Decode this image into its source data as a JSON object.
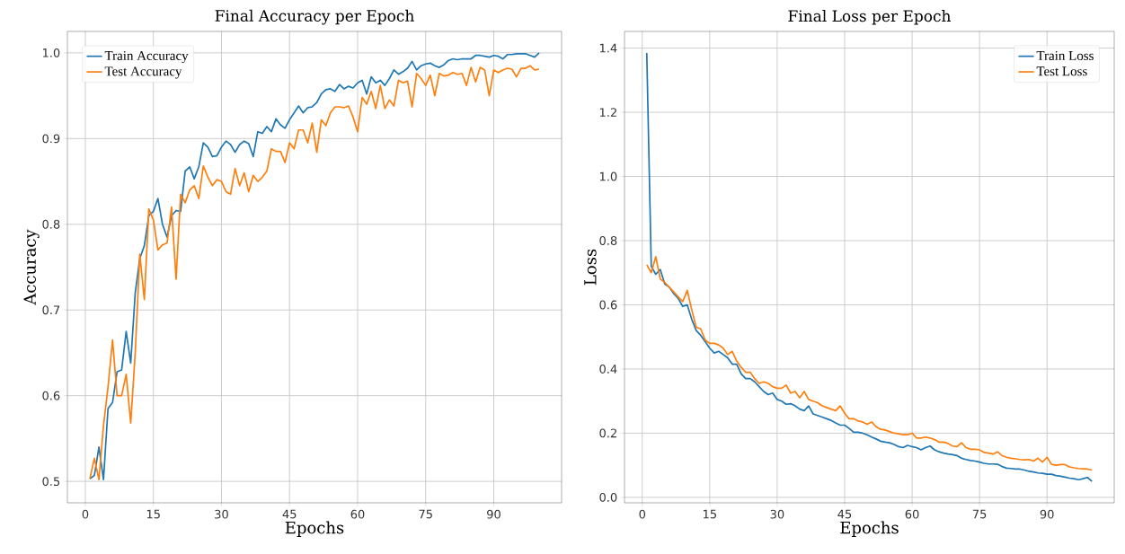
{
  "chart_data": [
    {
      "type": "line",
      "title": "Final Accuracy per Epoch",
      "xlabel": "Epochs",
      "ylabel": "Accuracy",
      "x": [
        1,
        2,
        3,
        4,
        5,
        6,
        7,
        8,
        9,
        10,
        11,
        12,
        13,
        14,
        15,
        16,
        17,
        18,
        19,
        20,
        21,
        22,
        23,
        24,
        25,
        26,
        27,
        28,
        29,
        30,
        31,
        32,
        33,
        34,
        35,
        36,
        37,
        38,
        39,
        40,
        41,
        42,
        43,
        44,
        45,
        46,
        47,
        48,
        49,
        50,
        51,
        52,
        53,
        54,
        55,
        56,
        57,
        58,
        59,
        60,
        61,
        62,
        63,
        64,
        65,
        66,
        67,
        68,
        69,
        70,
        71,
        72,
        73,
        74,
        75,
        76,
        77,
        78,
        79,
        80,
        81,
        82,
        83,
        84,
        85,
        86,
        87,
        88,
        89,
        90,
        91,
        92,
        93,
        94,
        95,
        96,
        97,
        98,
        99,
        100
      ],
      "series": [
        {
          "name": "Train Accuracy",
          "color": "#1f77b4",
          "values": [
            0.503,
            0.507,
            0.54,
            0.502,
            0.585,
            0.592,
            0.628,
            0.63,
            0.675,
            0.638,
            0.72,
            0.76,
            0.775,
            0.81,
            0.815,
            0.83,
            0.8,
            0.785,
            0.81,
            0.816,
            0.815,
            0.862,
            0.867,
            0.853,
            0.867,
            0.895,
            0.89,
            0.879,
            0.88,
            0.89,
            0.897,
            0.893,
            0.884,
            0.893,
            0.897,
            0.894,
            0.879,
            0.908,
            0.906,
            0.914,
            0.908,
            0.923,
            0.916,
            0.912,
            0.922,
            0.93,
            0.938,
            0.93,
            0.936,
            0.937,
            0.942,
            0.952,
            0.957,
            0.958,
            0.955,
            0.963,
            0.958,
            0.961,
            0.959,
            0.965,
            0.968,
            0.952,
            0.972,
            0.965,
            0.968,
            0.962,
            0.97,
            0.98,
            0.975,
            0.978,
            0.982,
            0.99,
            0.98,
            0.985,
            0.987,
            0.988,
            0.985,
            0.983,
            0.986,
            0.991,
            0.993,
            0.992,
            0.993,
            0.993,
            0.993,
            0.997,
            0.997,
            0.996,
            0.995,
            0.997,
            0.996,
            0.993,
            0.998,
            0.998,
            0.999,
            0.999,
            0.999,
            0.997,
            0.995,
            1.0
          ]
        },
        {
          "name": "Test Accuracy",
          "color": "#ff7f0e",
          "values": [
            0.503,
            0.527,
            0.502,
            0.565,
            0.61,
            0.665,
            0.6,
            0.6,
            0.625,
            0.568,
            0.65,
            0.765,
            0.712,
            0.818,
            0.805,
            0.77,
            0.776,
            0.778,
            0.82,
            0.736,
            0.835,
            0.825,
            0.84,
            0.845,
            0.83,
            0.868,
            0.855,
            0.845,
            0.852,
            0.85,
            0.838,
            0.835,
            0.865,
            0.845,
            0.86,
            0.838,
            0.857,
            0.85,
            0.855,
            0.862,
            0.888,
            0.885,
            0.885,
            0.872,
            0.895,
            0.888,
            0.91,
            0.91,
            0.895,
            0.918,
            0.884,
            0.922,
            0.915,
            0.93,
            0.937,
            0.937,
            0.936,
            0.938,
            0.925,
            0.908,
            0.948,
            0.94,
            0.955,
            0.935,
            0.962,
            0.935,
            0.945,
            0.938,
            0.968,
            0.965,
            0.967,
            0.937,
            0.976,
            0.97,
            0.962,
            0.974,
            0.95,
            0.976,
            0.973,
            0.974,
            0.977,
            0.975,
            0.976,
            0.962,
            0.983,
            0.966,
            0.983,
            0.98,
            0.95,
            0.98,
            0.977,
            0.98,
            0.982,
            0.981,
            0.972,
            0.982,
            0.982,
            0.985,
            0.98,
            0.981
          ]
        }
      ],
      "xlim": [
        -3.95,
        104.95
      ],
      "ylim": [
        0.475,
        1.025
      ],
      "xticks": [
        0,
        15,
        30,
        45,
        60,
        75,
        90
      ],
      "yticks": [
        {
          "value": 0.5,
          "label": "0.5"
        },
        {
          "value": 0.6,
          "label": "0.6"
        },
        {
          "value": 0.7,
          "label": "0.7"
        },
        {
          "value": 0.8,
          "label": "0.8"
        },
        {
          "value": 0.9,
          "label": "0.9"
        },
        {
          "value": 1.0,
          "label": "1.0"
        }
      ],
      "grid": true,
      "legend": "top left"
    },
    {
      "type": "line",
      "title": "Final Loss per Epoch",
      "xlabel": "Epochs",
      "ylabel": "Loss",
      "x": [
        1,
        2,
        3,
        4,
        5,
        6,
        7,
        8,
        9,
        10,
        11,
        12,
        13,
        14,
        15,
        16,
        17,
        18,
        19,
        20,
        21,
        22,
        23,
        24,
        25,
        26,
        27,
        28,
        29,
        30,
        31,
        32,
        33,
        34,
        35,
        36,
        37,
        38,
        39,
        40,
        41,
        42,
        43,
        44,
        45,
        46,
        47,
        48,
        49,
        50,
        51,
        52,
        53,
        54,
        55,
        56,
        57,
        58,
        59,
        60,
        61,
        62,
        63,
        64,
        65,
        66,
        67,
        68,
        69,
        70,
        71,
        72,
        73,
        74,
        75,
        76,
        77,
        78,
        79,
        80,
        81,
        82,
        83,
        84,
        85,
        86,
        87,
        88,
        89,
        90,
        91,
        92,
        93,
        94,
        95,
        96,
        97,
        98,
        99,
        100
      ],
      "series": [
        {
          "name": "Train Loss",
          "color": "#1f77b4",
          "values": [
            1.385,
            0.72,
            0.695,
            0.71,
            0.665,
            0.655,
            0.635,
            0.62,
            0.595,
            0.6,
            0.555,
            0.52,
            0.505,
            0.485,
            0.465,
            0.45,
            0.455,
            0.445,
            0.435,
            0.415,
            0.415,
            0.385,
            0.37,
            0.37,
            0.36,
            0.345,
            0.33,
            0.32,
            0.325,
            0.305,
            0.3,
            0.29,
            0.292,
            0.285,
            0.275,
            0.27,
            0.285,
            0.26,
            0.255,
            0.25,
            0.245,
            0.24,
            0.232,
            0.225,
            0.225,
            0.215,
            0.203,
            0.203,
            0.2,
            0.195,
            0.188,
            0.182,
            0.175,
            0.172,
            0.17,
            0.165,
            0.158,
            0.155,
            0.162,
            0.158,
            0.155,
            0.148,
            0.155,
            0.16,
            0.148,
            0.142,
            0.138,
            0.135,
            0.133,
            0.13,
            0.122,
            0.118,
            0.115,
            0.113,
            0.11,
            0.106,
            0.104,
            0.104,
            0.103,
            0.096,
            0.091,
            0.09,
            0.088,
            0.088,
            0.085,
            0.081,
            0.079,
            0.076,
            0.075,
            0.072,
            0.072,
            0.068,
            0.066,
            0.063,
            0.06,
            0.058,
            0.055,
            0.058,
            0.062,
            0.05
          ]
        },
        {
          "name": "Test Loss",
          "color": "#ff7f0e",
          "values": [
            0.725,
            0.7,
            0.75,
            0.68,
            0.67,
            0.655,
            0.64,
            0.625,
            0.61,
            0.645,
            0.585,
            0.53,
            0.525,
            0.49,
            0.48,
            0.48,
            0.475,
            0.465,
            0.445,
            0.455,
            0.425,
            0.405,
            0.39,
            0.39,
            0.37,
            0.355,
            0.36,
            0.355,
            0.345,
            0.34,
            0.34,
            0.35,
            0.325,
            0.33,
            0.31,
            0.33,
            0.305,
            0.3,
            0.295,
            0.285,
            0.28,
            0.275,
            0.27,
            0.285,
            0.262,
            0.245,
            0.245,
            0.238,
            0.235,
            0.228,
            0.235,
            0.22,
            0.212,
            0.21,
            0.205,
            0.2,
            0.198,
            0.195,
            0.195,
            0.2,
            0.185,
            0.185,
            0.188,
            0.185,
            0.18,
            0.172,
            0.172,
            0.168,
            0.16,
            0.158,
            0.17,
            0.155,
            0.15,
            0.15,
            0.148,
            0.14,
            0.138,
            0.135,
            0.142,
            0.13,
            0.125,
            0.122,
            0.12,
            0.118,
            0.117,
            0.118,
            0.113,
            0.122,
            0.11,
            0.125,
            0.103,
            0.1,
            0.102,
            0.102,
            0.095,
            0.092,
            0.09,
            0.089,
            0.088,
            0.085
          ]
        }
      ],
      "xlim": [
        -3.95,
        104.95
      ],
      "ylim": [
        -0.017,
        1.452
      ],
      "xticks": [
        0,
        15,
        30,
        45,
        60,
        75,
        90
      ],
      "yticks": [
        {
          "value": 0.0,
          "label": "0.0"
        },
        {
          "value": 0.2,
          "label": "0.2"
        },
        {
          "value": 0.4,
          "label": "0.4"
        },
        {
          "value": 0.6,
          "label": "0.6"
        },
        {
          "value": 0.8,
          "label": "0.8"
        },
        {
          "value": 1.0,
          "label": "1.0"
        },
        {
          "value": 1.2,
          "label": "1.2"
        },
        {
          "value": 1.4,
          "label": "1.4"
        }
      ],
      "grid": true,
      "legend": "top right"
    }
  ]
}
